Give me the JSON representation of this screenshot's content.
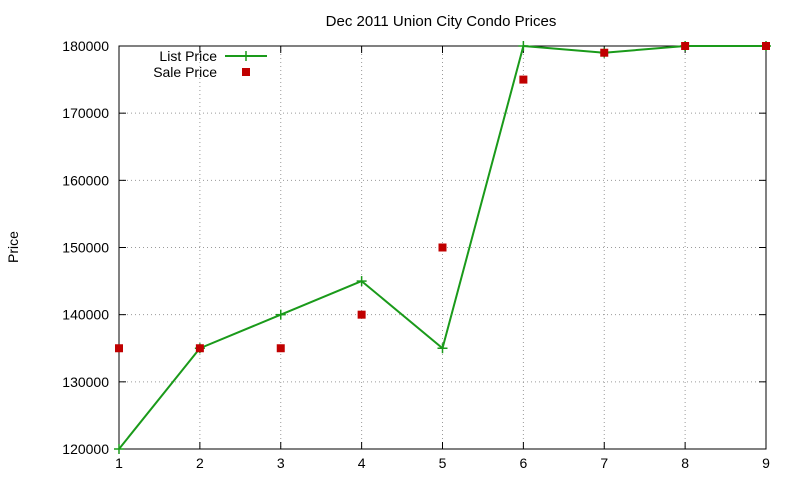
{
  "chart_data": {
    "type": "line",
    "title": "Dec 2011 Union City Condo Prices",
    "xlabel": "",
    "ylabel": "Price",
    "x": [
      1,
      2,
      3,
      4,
      5,
      6,
      7,
      8,
      9
    ],
    "xlim": [
      1,
      9
    ],
    "ylim": [
      120000,
      180000
    ],
    "xticks": [
      "1",
      "2",
      "3",
      "4",
      "5",
      "6",
      "7",
      "8",
      "9"
    ],
    "yticks": [
      "120000",
      "130000",
      "140000",
      "150000",
      "160000",
      "170000",
      "180000"
    ],
    "grid": true,
    "legend_position": "top-left",
    "series": [
      {
        "name": "List Price",
        "style": "line-with-plus-markers",
        "color": "#1a9a1a",
        "values": [
          120000,
          135000,
          140000,
          145000,
          135000,
          180000,
          179000,
          180000,
          180000
        ]
      },
      {
        "name": "Sale Price",
        "style": "square-points",
        "color": "#c00000",
        "values": [
          135000,
          135000,
          135000,
          140000,
          150000,
          175000,
          179000,
          180000,
          180000
        ]
      }
    ]
  }
}
